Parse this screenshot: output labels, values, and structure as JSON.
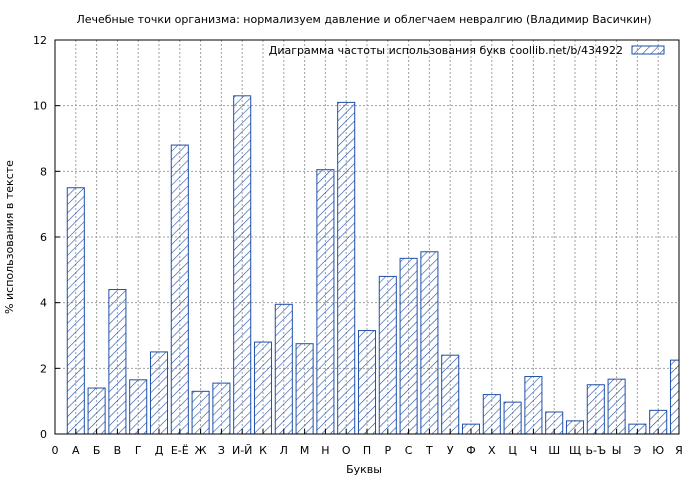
{
  "colors": {
    "bar_stroke": "#1f4fa8",
    "hatch": "#1f4fa8",
    "grid": "#a0a0a0",
    "axis": "#000000"
  },
  "chart_data": {
    "type": "bar",
    "title": "Лечебные точки организма: нормализуем давление и облегчаем невралгию (Владимир Васичкин)",
    "xlabel": "Буквы",
    "ylabel": "% использования в тексте",
    "ylim": [
      0,
      12
    ],
    "yticks": [
      0,
      2,
      4,
      6,
      8,
      10,
      12
    ],
    "grid": true,
    "legend_position": "top-right",
    "x_start_label": "0",
    "categories": [
      "А",
      "Б",
      "В",
      "Г",
      "Д",
      "Е-Ё",
      "Ж",
      "З",
      "И-Й",
      "К",
      "Л",
      "М",
      "Н",
      "О",
      "П",
      "Р",
      "С",
      "Т",
      "У",
      "Ф",
      "Х",
      "Ц",
      "Ч",
      "Ш",
      "Щ",
      "Ь-Ъ",
      "Ы",
      "Э",
      "Ю",
      "Я"
    ],
    "series": [
      {
        "name": "Диаграмма частоты использования букв  coollib.net/b/434922",
        "values": [
          7.5,
          1.4,
          4.4,
          1.65,
          2.5,
          8.8,
          1.3,
          1.55,
          10.3,
          2.8,
          3.95,
          2.75,
          8.05,
          10.1,
          3.15,
          4.8,
          5.35,
          5.55,
          2.4,
          0.3,
          1.2,
          0.97,
          1.75,
          0.67,
          0.4,
          1.5,
          1.67,
          0.3,
          0.72,
          2.25
        ]
      }
    ]
  }
}
